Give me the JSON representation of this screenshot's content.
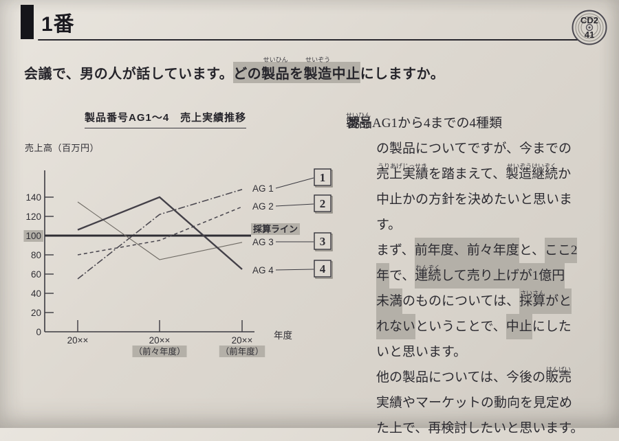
{
  "header": {
    "number": "1番",
    "cd_line1": "CD2",
    "cd_line2": "41"
  },
  "question": {
    "segments": [
      {
        "t": "会議で、男の人が話しています。"
      },
      {
        "t": "どの",
        "hl": true
      },
      {
        "t": "製品",
        "hl": true,
        "ruby": "せいひん"
      },
      {
        "t": "を",
        "hl": true
      },
      {
        "t": "製造",
        "hl": true,
        "ruby": "せいぞう"
      },
      {
        "t": "中止",
        "hl": true
      },
      {
        "t": "にしますか。"
      }
    ]
  },
  "chart_data": {
    "type": "line",
    "title": "製品番号AG1～4　売上実績推移",
    "ylabel": "売上高（百万円）",
    "xlabel": "年度",
    "ylim": [
      0,
      160
    ],
    "y_ticks": [
      0,
      20,
      40,
      60,
      80,
      100,
      120,
      140
    ],
    "y_tick_highlight": 100,
    "x_ticks": [
      {
        "label": "20××",
        "sub": ""
      },
      {
        "label": "20××",
        "sub": "（前々年度）"
      },
      {
        "label": "20××",
        "sub": "（前年度）"
      }
    ],
    "breakeven": {
      "value": 100,
      "label": "採算ライン"
    },
    "legend_position": "right-of-lines",
    "grid": false,
    "series": [
      {
        "name": "AG 1",
        "values": [
          55,
          122,
          148
        ],
        "style": "dashdot",
        "answer_box": "1"
      },
      {
        "name": "AG 2",
        "values": [
          80,
          95,
          130
        ],
        "style": "dashed",
        "answer_box": "2"
      },
      {
        "name": "AG 3",
        "values": [
          135,
          75,
          93
        ],
        "style": "solid-thin",
        "answer_box": "3"
      },
      {
        "name": "AG 4",
        "values": [
          106,
          140,
          65
        ],
        "style": "solid-thick",
        "answer_box": "4"
      }
    ]
  },
  "dialogue": {
    "speaker": "男",
    "lines": [
      [
        {
          "t": "製品",
          "ruby": "せいひん"
        },
        {
          "t": "番号AG1から4までの4種類"
        }
      ],
      [
        {
          "t": "の製品についてですが、今までの"
        }
      ],
      [
        {
          "t": "売上実績",
          "ruby": "うりあげじっせき"
        },
        {
          "t": "を踏まえて、"
        },
        {
          "t": "製造継続",
          "ruby": "せいぞうけいぞく"
        },
        {
          "t": "か"
        }
      ],
      [
        {
          "t": "中止かの方針を決めたいと思いま"
        }
      ],
      [
        {
          "t": "す。"
        }
      ],
      [
        {
          "t": "まず、"
        },
        {
          "t": "前年度、",
          "hl": true
        },
        {
          "t": "前々年度",
          "hl": true
        },
        {
          "t": "と、"
        },
        {
          "t": "ここ2",
          "hl": true
        }
      ],
      [
        {
          "t": "年",
          "hl": true
        },
        {
          "t": "で、"
        },
        {
          "t": "連続",
          "hl": true,
          "ruby": "れんぞく"
        },
        {
          "t": "して売り上げが1億円",
          "hl": true
        }
      ],
      [
        {
          "t": "未満",
          "hl": true
        },
        {
          "t": "のものについては、"
        },
        {
          "t": "採算",
          "hl": true,
          "ruby": "さいさん"
        },
        {
          "t": "がと",
          "hl": true
        }
      ],
      [
        {
          "t": "れない",
          "hl": true
        },
        {
          "t": "ということで、"
        },
        {
          "t": "中止",
          "hl": true
        },
        {
          "t": "にした"
        }
      ],
      [
        {
          "t": "いと思います。"
        }
      ],
      [
        {
          "t": "他の製品については、今後の"
        },
        {
          "t": "販売",
          "ruby": "はんばい"
        }
      ],
      [
        {
          "t": "実績やマーケットの動向を見定め"
        }
      ],
      [
        {
          "t": "た上で、再検討したいと思います。"
        }
      ]
    ]
  },
  "colors": {
    "page_bg": "#ddd8d0",
    "ink": "#2f2e34",
    "highlight": "#b4b0a8",
    "line_dark": "#4c4951",
    "line_thin": "#6e6a64"
  }
}
